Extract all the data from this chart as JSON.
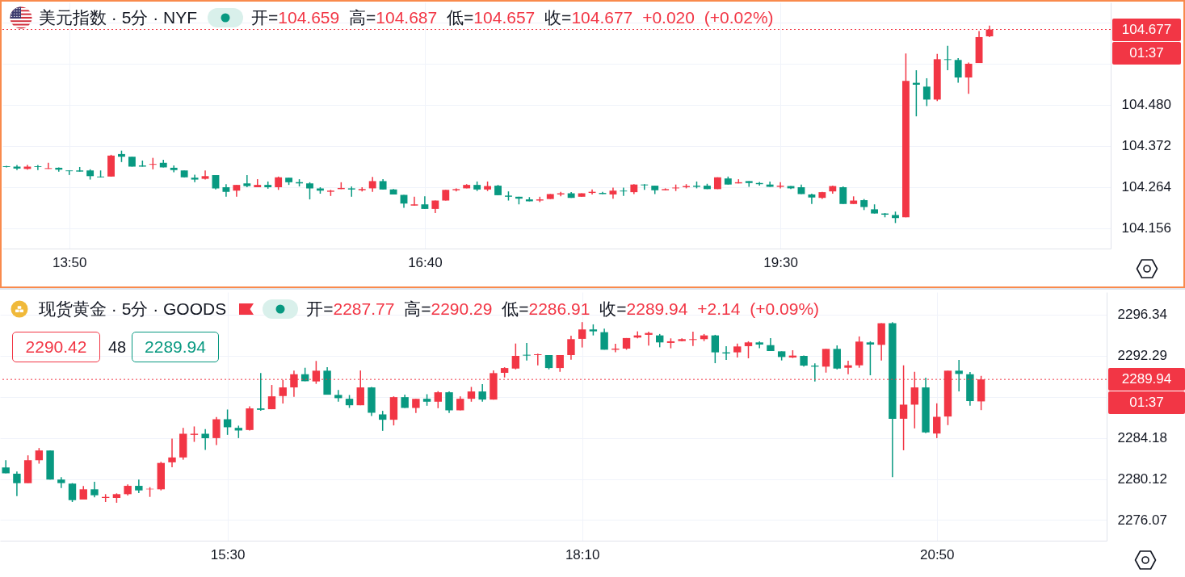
{
  "chart_data": [
    {
      "type": "candlestick",
      "title": "美元指数 · 5分 · NYF",
      "subtitle": "开=104.659 高=104.687 低=104.657 收=104.677 +0.020 (+0.02%)",
      "annotations": [
        "01:37"
      ],
      "x": [
        13.3333,
        13.4167,
        13.5,
        13.5833,
        13.6667,
        13.75,
        13.8333,
        13.9167,
        14,
        14.0833,
        14.1667,
        14.25,
        14.3333,
        14.4167,
        14.5,
        14.5833,
        14.6667,
        14.75,
        14.8333,
        14.9167,
        15,
        15.0833,
        15.1667,
        15.25,
        15.3333,
        15.4167,
        15.5,
        15.5833,
        15.6667,
        15.75,
        15.8333,
        15.9167,
        16,
        16.0833,
        16.1667,
        16.25,
        16.3333,
        16.4167,
        16.5,
        16.5833,
        16.6667,
        16.75,
        16.8333,
        16.9167,
        17,
        17.0833,
        17.1667,
        17.25,
        17.3333,
        17.4167,
        17.5,
        17.5833,
        17.6667,
        17.75,
        17.8333,
        17.9167,
        18,
        18.0833,
        18.1667,
        18.25,
        18.3333,
        18.4167,
        18.5,
        18.5833,
        18.6667,
        18.75,
        18.8333,
        18.9167,
        19,
        19.0833,
        19.1667,
        19.25,
        19.3333,
        19.4167,
        19.5,
        19.5833,
        19.6667,
        19.75,
        19.8333,
        19.9167,
        20,
        20.0833,
        20.1667,
        20.25,
        20.3333,
        20.4167,
        20.5,
        20.5833,
        20.6667,
        20.75,
        20.8333,
        20.9167,
        21,
        21.0833,
        21.1667
      ],
      "ohlc": [
        [
          104.318,
          104.319,
          104.315,
          104.316
        ],
        [
          104.317,
          104.321,
          104.308,
          104.312
        ],
        [
          104.311,
          104.322,
          104.309,
          104.317
        ],
        [
          104.318,
          104.321,
          104.308,
          104.316
        ],
        [
          104.311,
          104.327,
          104.311,
          104.313
        ],
        [
          104.314,
          104.315,
          104.304,
          104.309
        ],
        [
          104.307,
          104.307,
          104.295,
          104.305
        ],
        [
          104.307,
          104.316,
          104.304,
          104.304
        ],
        [
          104.307,
          104.31,
          104.283,
          104.292
        ],
        [
          104.291,
          104.307,
          104.289,
          104.289
        ],
        [
          104.291,
          104.348,
          104.291,
          104.346
        ],
        [
          104.35,
          104.359,
          104.329,
          104.343
        ],
        [
          104.343,
          104.343,
          104.317,
          104.317
        ],
        [
          104.32,
          104.333,
          104.317,
          104.317
        ],
        [
          104.322,
          104.34,
          104.31,
          104.324
        ],
        [
          104.327,
          104.335,
          104.315,
          104.315
        ],
        [
          104.314,
          104.32,
          104.302,
          104.308
        ],
        [
          104.307,
          104.307,
          104.289,
          104.289
        ],
        [
          104.288,
          104.296,
          104.276,
          104.283
        ],
        [
          104.285,
          104.307,
          104.283,
          104.292
        ],
        [
          104.295,
          104.295,
          104.257,
          104.26
        ],
        [
          104.263,
          104.271,
          104.238,
          104.251
        ],
        [
          104.254,
          104.269,
          104.238,
          104.269
        ],
        [
          104.273,
          104.295,
          104.263,
          104.266
        ],
        [
          104.263,
          104.284,
          104.263,
          104.269
        ],
        [
          104.269,
          104.278,
          104.259,
          104.263
        ],
        [
          104.263,
          104.291,
          104.256,
          104.289
        ],
        [
          104.288,
          104.288,
          104.269,
          104.276
        ],
        [
          104.276,
          104.284,
          104.265,
          104.273
        ],
        [
          104.273,
          104.276,
          104.231,
          104.26
        ],
        [
          104.26,
          104.263,
          104.246,
          104.254
        ],
        [
          104.251,
          104.256,
          104.24,
          104.254
        ],
        [
          104.258,
          104.276,
          104.258,
          104.261
        ],
        [
          104.26,
          104.265,
          104.238,
          104.257
        ],
        [
          104.255,
          104.263,
          104.252,
          104.258
        ],
        [
          104.26,
          104.29,
          104.251,
          104.279
        ],
        [
          104.279,
          104.284,
          104.257,
          104.257
        ],
        [
          104.257,
          104.258,
          104.244,
          104.244
        ],
        [
          104.243,
          104.243,
          104.209,
          104.22
        ],
        [
          104.215,
          104.238,
          104.215,
          104.218
        ],
        [
          104.218,
          104.239,
          104.206,
          104.206
        ],
        [
          104.206,
          104.228,
          104.195,
          104.228
        ],
        [
          104.228,
          104.256,
          104.228,
          104.256
        ],
        [
          104.255,
          104.26,
          104.252,
          104.258
        ],
        [
          104.26,
          104.271,
          104.26,
          104.269
        ],
        [
          104.269,
          104.278,
          104.253,
          104.257
        ],
        [
          104.257,
          104.278,
          104.253,
          104.266
        ],
        [
          104.267,
          104.269,
          104.242,
          104.242
        ],
        [
          104.241,
          104.252,
          104.228,
          104.238
        ],
        [
          104.238,
          104.238,
          104.218,
          104.233
        ],
        [
          104.231,
          104.237,
          104.226,
          104.226
        ],
        [
          104.228,
          104.238,
          104.224,
          104.231
        ],
        [
          104.232,
          104.245,
          104.232,
          104.245
        ],
        [
          104.244,
          104.251,
          104.239,
          104.247
        ],
        [
          104.247,
          104.25,
          104.235,
          104.235
        ],
        [
          104.238,
          104.247,
          104.238,
          104.247
        ],
        [
          104.248,
          104.257,
          104.244,
          104.251
        ],
        [
          104.248,
          104.251,
          104.245,
          104.245
        ],
        [
          104.244,
          104.262,
          104.233,
          104.254
        ],
        [
          104.254,
          104.262,
          104.24,
          104.252
        ],
        [
          104.25,
          104.271,
          104.245,
          104.27
        ],
        [
          104.27,
          104.271,
          104.256,
          104.268
        ],
        [
          104.267,
          104.267,
          104.245,
          104.255
        ],
        [
          104.255,
          104.26,
          104.255,
          104.258
        ],
        [
          104.26,
          104.27,
          104.253,
          104.262
        ],
        [
          104.263,
          104.271,
          104.26,
          104.266
        ],
        [
          104.267,
          104.278,
          104.26,
          104.264
        ],
        [
          104.267,
          104.272,
          104.258,
          104.258
        ],
        [
          104.258,
          104.289,
          104.258,
          104.289
        ],
        [
          104.286,
          104.291,
          104.27,
          104.27
        ],
        [
          104.273,
          104.284,
          104.273,
          104.276
        ],
        [
          104.279,
          104.279,
          104.264,
          104.274
        ],
        [
          104.274,
          104.277,
          104.267,
          104.271
        ],
        [
          104.27,
          104.278,
          104.264,
          104.264
        ],
        [
          104.264,
          104.276,
          104.26,
          104.267
        ],
        [
          104.266,
          104.266,
          104.258,
          104.26
        ],
        [
          104.263,
          104.27,
          104.245,
          104.245
        ],
        [
          104.244,
          104.246,
          104.219,
          104.236
        ],
        [
          104.235,
          104.251,
          104.232,
          104.25
        ],
        [
          104.252,
          104.267,
          104.246,
          104.266
        ],
        [
          104.263,
          104.265,
          104.219,
          104.219
        ],
        [
          104.219,
          104.239,
          104.219,
          104.228
        ],
        [
          104.229,
          104.232,
          104.203,
          104.211
        ],
        [
          104.205,
          104.218,
          104.194,
          104.194
        ],
        [
          104.194,
          104.195,
          104.184,
          104.191
        ],
        [
          104.19,
          104.199,
          104.169,
          104.182
        ],
        [
          104.184,
          104.614,
          104.184,
          104.542
        ],
        [
          104.537,
          104.57,
          104.449,
          104.532
        ],
        [
          104.527,
          104.549,
          104.476,
          104.493
        ],
        [
          104.493,
          104.613,
          104.489,
          104.599
        ],
        [
          104.599,
          104.634,
          104.57,
          104.597
        ],
        [
          104.597,
          104.602,
          104.537,
          104.551
        ],
        [
          104.551,
          104.59,
          104.508,
          104.587
        ],
        [
          104.589,
          104.673,
          104.589,
          104.657
        ],
        [
          104.659,
          104.687,
          104.657,
          104.677
        ]
      ],
      "colors": [
        "#089981",
        "#089981",
        "#f23645",
        "#089981",
        "#f23645",
        "#089981",
        "#089981",
        "#089981",
        "#089981",
        "#089981",
        "#f23645",
        "#089981",
        "#089981",
        "#089981",
        "#f23645",
        "#089981",
        "#089981",
        "#089981",
        "#089981",
        "#f23645",
        "#089981",
        "#089981",
        "#f23645",
        "#089981",
        "#f23645",
        "#089981",
        "#f23645",
        "#089981",
        "#089981",
        "#089981",
        "#089981",
        "#f23645",
        "#f23645",
        "#089981",
        "#f23645",
        "#f23645",
        "#089981",
        "#089981",
        "#089981",
        "#f23645",
        "#089981",
        "#f23645",
        "#f23645",
        "#f23645",
        "#f23645",
        "#089981",
        "#f23645",
        "#089981",
        "#089981",
        "#089981",
        "#089981",
        "#f23645",
        "#f23645",
        "#f23645",
        "#089981",
        "#f23645",
        "#f23645",
        "#089981",
        "#f23645",
        "#089981",
        "#f23645",
        "#089981",
        "#089981",
        "#f23645",
        "#f23645",
        "#f23645",
        "#089981",
        "#089981",
        "#f23645",
        "#089981",
        "#f23645",
        "#089981",
        "#089981",
        "#089981",
        "#f23645",
        "#089981",
        "#089981",
        "#089981",
        "#f23645",
        "#f23645",
        "#089981",
        "#f23645",
        "#089981",
        "#089981",
        "#089981",
        "#089981",
        "#f23645",
        "#089981",
        "#089981",
        "#f23645",
        "#089981",
        "#089981",
        "#f23645",
        "#f23645",
        "#f23645"
      ],
      "xlim": [
        13.333,
        22.1
      ],
      "xticks": [
        {
          "value": 13.8333,
          "label": "13:50"
        },
        {
          "value": 16.6667,
          "label": "16:40"
        },
        {
          "value": 19.5,
          "label": "19:30"
        }
      ],
      "ylim": [
        104.102,
        104.748
      ],
      "yticks": [
        104.156,
        104.264,
        104.372,
        {
          "value": 104.48,
          "label": "104.480"
        },
        {
          "value": 104.588,
          "label": null
        },
        {
          "value": 104.696,
          "label": null
        }
      ],
      "ref_lines": [
        {
          "axis": "y",
          "value": 104.677,
          "label": "104.677",
          "color": "#f23645",
          "line_style": "dotted"
        }
      ],
      "grid": true
    },
    {
      "type": "candlestick",
      "title": "现货黄金 · 5分 · GOODS",
      "subtitle": "开=2287.77 高=2290.29 低=2286.91 收=2289.94 +2.14 (+0.09%)",
      "annotations": [
        "01:37",
        "2290.42",
        "48",
        "2289.94"
      ],
      "x": [
        13.8333,
        13.9167,
        14,
        14.0833,
        14.1667,
        14.25,
        14.3333,
        14.4167,
        14.5,
        14.5833,
        14.6667,
        14.75,
        14.8333,
        14.9167,
        15,
        15.0833,
        15.1667,
        15.25,
        15.3333,
        15.4167,
        15.5,
        15.5833,
        15.6667,
        15.75,
        15.8333,
        15.9167,
        16,
        16.0833,
        16.1667,
        16.25,
        16.3333,
        16.4167,
        16.5,
        16.5833,
        16.6667,
        16.75,
        16.8333,
        16.9167,
        17,
        17.0833,
        17.1667,
        17.25,
        17.3333,
        17.4167,
        17.5,
        17.5833,
        17.6667,
        17.75,
        17.8333,
        17.9167,
        18,
        18.0833,
        18.1667,
        18.25,
        18.3333,
        18.4167,
        18.5,
        18.5833,
        18.6667,
        18.75,
        18.8333,
        18.9167,
        19,
        19.0833,
        19.1667,
        19.25,
        19.3333,
        19.4167,
        19.5,
        19.5833,
        19.6667,
        19.75,
        19.8333,
        19.9167,
        20,
        20.0833,
        20.1667,
        20.25,
        20.3333,
        20.4167,
        20.5,
        20.5833,
        20.6667,
        20.75,
        20.8333,
        20.9167,
        21,
        21.0833,
        21.1667
      ],
      "ohlc": [
        [
          2281.25,
          2281.97,
          2280.67,
          2280.67
        ],
        [
          2280.64,
          2280.85,
          2278.43,
          2279.71
        ],
        [
          2279.71,
          2282.45,
          2279.71,
          2281.97
        ],
        [
          2281.97,
          2283.17,
          2281.63,
          2282.93
        ],
        [
          2282.93,
          2282.93,
          2280.06,
          2280.06
        ],
        [
          2280.06,
          2280.3,
          2279.23,
          2279.71
        ],
        [
          2279.66,
          2279.71,
          2277.85,
          2278.03
        ],
        [
          2278.09,
          2279.42,
          2278.09,
          2279.1
        ],
        [
          2279.1,
          2279.84,
          2278.3,
          2278.51
        ],
        [
          2278.25,
          2278.62,
          2277.85,
          2278.35
        ],
        [
          2278.25,
          2278.7,
          2277.77,
          2278.62
        ],
        [
          2278.62,
          2279.58,
          2278.49,
          2279.44
        ],
        [
          2279.44,
          2280.06,
          2278.73,
          2278.99
        ],
        [
          2279.1,
          2279.31,
          2278.35,
          2279.15
        ],
        [
          2279.1,
          2281.81,
          2278.99,
          2281.7
        ],
        [
          2281.76,
          2284.1,
          2281.28,
          2282.24
        ],
        [
          2282.24,
          2285.16,
          2282.02,
          2284.58
        ],
        [
          2284.47,
          2285.3,
          2283.78,
          2284.58
        ],
        [
          2284.58,
          2285.03,
          2282.98,
          2284.15
        ],
        [
          2284.15,
          2286.23,
          2283.46,
          2286.01
        ],
        [
          2286.01,
          2286.97,
          2284.47,
          2285.22
        ],
        [
          2285.16,
          2285.38,
          2284.15,
          2284.9
        ],
        [
          2284.95,
          2287.29,
          2284.9,
          2287.08
        ],
        [
          2287.08,
          2290.56,
          2286.84,
          2286.94
        ],
        [
          2287.0,
          2289.39,
          2287.0,
          2288.27
        ],
        [
          2288.3,
          2289.9,
          2287.56,
          2289.15
        ],
        [
          2289.15,
          2290.8,
          2288.22,
          2290.45
        ],
        [
          2290.45,
          2291.09,
          2289.76,
          2289.76
        ],
        [
          2289.74,
          2291.76,
          2289.5,
          2290.8
        ],
        [
          2290.8,
          2291.15,
          2288.43,
          2288.43
        ],
        [
          2288.41,
          2288.89,
          2287.74,
          2288.09
        ],
        [
          2288.03,
          2288.4,
          2287.13,
          2287.39
        ],
        [
          2287.39,
          2290.82,
          2287.39,
          2289.15
        ],
        [
          2289.15,
          2289.2,
          2286.33,
          2286.65
        ],
        [
          2286.49,
          2286.84,
          2284.87,
          2285.96
        ],
        [
          2285.96,
          2288.27,
          2285.4,
          2288.19
        ],
        [
          2288.19,
          2288.43,
          2287.13,
          2287.13
        ],
        [
          2287.13,
          2288.03,
          2286.62,
          2288.03
        ],
        [
          2288.03,
          2288.48,
          2287.34,
          2287.74
        ],
        [
          2287.74,
          2288.78,
          2287.1,
          2288.67
        ],
        [
          2288.67,
          2288.75,
          2286.62,
          2286.89
        ],
        [
          2286.89,
          2288.27,
          2286.89,
          2288.03
        ],
        [
          2288.03,
          2289.2,
          2287.74,
          2288.75
        ],
        [
          2288.75,
          2289.47,
          2287.74,
          2287.95
        ],
        [
          2287.95,
          2290.82,
          2287.95,
          2290.56
        ],
        [
          2290.59,
          2291.14,
          2290.13,
          2291.06
        ],
        [
          2291.01,
          2293.48,
          2290.93,
          2292.26
        ],
        [
          2292.37,
          2293.54,
          2291.81,
          2292.29
        ],
        [
          2292.34,
          2292.47,
          2291.33,
          2292.42
        ],
        [
          2292.34,
          2292.34,
          2290.93,
          2291.06
        ],
        [
          2291.06,
          2292.34,
          2290.69,
          2292.34
        ],
        [
          2292.34,
          2294.26,
          2291.89,
          2293.91
        ],
        [
          2293.94,
          2295.59,
          2293.09,
          2294.87
        ],
        [
          2294.87,
          2295.37,
          2294.28,
          2294.68
        ],
        [
          2294.6,
          2294.95,
          2292.87,
          2292.87
        ],
        [
          2292.87,
          2293.46,
          2292.61,
          2292.98
        ],
        [
          2292.98,
          2294.02,
          2292.87,
          2294.02
        ],
        [
          2294.07,
          2294.68,
          2293.99,
          2294.28
        ],
        [
          2294.34,
          2294.65,
          2293.27,
          2294.52
        ],
        [
          2294.28,
          2294.42,
          2293.11,
          2293.59
        ],
        [
          2293.54,
          2293.99,
          2293.01,
          2293.7
        ],
        [
          2293.72,
          2293.99,
          2293.7,
          2293.91
        ],
        [
          2293.83,
          2294.65,
          2293.24,
          2293.91
        ],
        [
          2293.91,
          2294.42,
          2293.72,
          2294.28
        ],
        [
          2294.28,
          2294.34,
          2291.54,
          2292.61
        ],
        [
          2292.61,
          2293.22,
          2291.86,
          2292.5
        ],
        [
          2292.61,
          2293.48,
          2292.1,
          2293.19
        ],
        [
          2293.22,
          2293.7,
          2292.02,
          2293.59
        ],
        [
          2293.59,
          2293.7,
          2293.01,
          2293.38
        ],
        [
          2293.32,
          2294.02,
          2292.74,
          2292.74
        ],
        [
          2292.71,
          2292.71,
          2291.81,
          2292.15
        ],
        [
          2292.1,
          2292.82,
          2292.05,
          2292.29
        ],
        [
          2292.26,
          2292.31,
          2291.2,
          2291.3
        ],
        [
          2291.3,
          2291.52,
          2289.73,
          2291.2
        ],
        [
          2291.2,
          2292.95,
          2290.61,
          2292.95
        ],
        [
          2292.95,
          2293.3,
          2290.93,
          2291.01
        ],
        [
          2291.09,
          2291.78,
          2290.45,
          2291.33
        ],
        [
          2291.33,
          2294.18,
          2291.09,
          2293.67
        ],
        [
          2293.59,
          2293.7,
          2290.35,
          2293.38
        ],
        [
          2293.35,
          2295.48,
          2291.81,
          2295.48
        ],
        [
          2295.48,
          2295.59,
          2280.29,
          2286.06
        ],
        [
          2286.06,
          2291.33,
          2282.95,
          2287.45
        ],
        [
          2287.45,
          2290.69,
          2285.11,
          2289.15
        ],
        [
          2289.15,
          2290.11,
          2284.63,
          2284.71
        ],
        [
          2284.6,
          2287.58,
          2284.15,
          2286.25
        ],
        [
          2286.28,
          2290.8,
          2285.43,
          2290.8
        ],
        [
          2290.8,
          2291.86,
          2288.75,
          2290.48
        ],
        [
          2290.45,
          2290.67,
          2287.34,
          2287.8
        ],
        [
          2287.77,
          2290.29,
          2286.91,
          2289.94
        ]
      ],
      "colors": [
        "#089981",
        "#089981",
        "#f23645",
        "#f23645",
        "#089981",
        "#089981",
        "#089981",
        "#f23645",
        "#089981",
        "#f23645",
        "#f23645",
        "#f23645",
        "#089981",
        "#f23645",
        "#f23645",
        "#f23645",
        "#f23645",
        "#f23645",
        "#089981",
        "#f23645",
        "#089981",
        "#089981",
        "#f23645",
        "#089981",
        "#f23645",
        "#f23645",
        "#f23645",
        "#089981",
        "#f23645",
        "#089981",
        "#089981",
        "#089981",
        "#f23645",
        "#089981",
        "#089981",
        "#f23645",
        "#089981",
        "#f23645",
        "#089981",
        "#f23645",
        "#089981",
        "#f23645",
        "#f23645",
        "#089981",
        "#f23645",
        "#f23645",
        "#f23645",
        "#089981",
        "#f23645",
        "#089981",
        "#f23645",
        "#f23645",
        "#f23645",
        "#089981",
        "#089981",
        "#f23645",
        "#f23645",
        "#f23645",
        "#f23645",
        "#089981",
        "#f23645",
        "#f23645",
        "#f23645",
        "#f23645",
        "#089981",
        "#089981",
        "#f23645",
        "#f23645",
        "#089981",
        "#089981",
        "#089981",
        "#f23645",
        "#089981",
        "#089981",
        "#f23645",
        "#089981",
        "#f23645",
        "#f23645",
        "#089981",
        "#f23645",
        "#089981",
        "#f23645",
        "#f23645",
        "#089981",
        "#f23645",
        "#f23645",
        "#089981",
        "#089981",
        "#f23645"
      ],
      "xlim": [
        13.82,
        22.08
      ],
      "xticks": [
        {
          "value": 15.5,
          "label": "15:30"
        },
        {
          "value": 18.1667,
          "label": "18:10"
        },
        {
          "value": 20.8333,
          "label": "20:50"
        }
      ],
      "ylim": [
        2274.03,
        2298.55
      ],
      "yticks": [
        2276.07,
        2280.12,
        2284.18,
        {
          "value": 2288.23,
          "label": null
        },
        2292.29,
        2296.34
      ],
      "ref_lines": [
        {
          "axis": "y",
          "value": 2289.94,
          "label": "2289.94",
          "color": "#f23645",
          "line_style": "dotted"
        }
      ],
      "grid": true
    }
  ]
}
